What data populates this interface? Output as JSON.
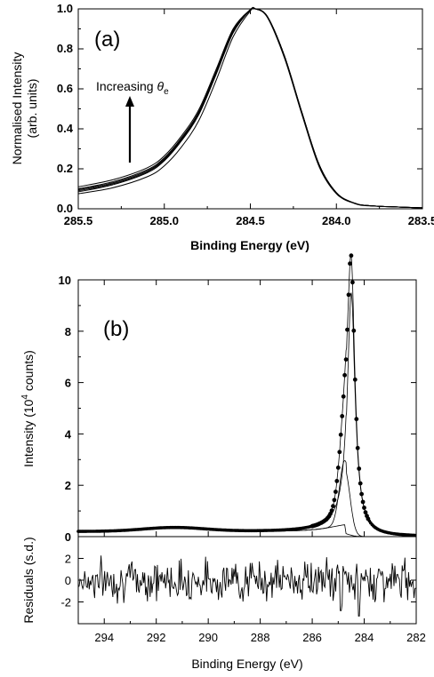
{
  "chart_data": [
    {
      "panel_label": "(a)",
      "type": "line",
      "xlabel": "Binding Energy (eV)",
      "ylabel_line1": "Normalised Intensity",
      "ylabel_line2": "(arb. units)",
      "xlim": [
        285.5,
        283.5
      ],
      "ylim": [
        0.0,
        1.0
      ],
      "x_reversed": true,
      "xticks": [
        "285.5",
        "285.0",
        "284.5",
        "284.0",
        "283.5"
      ],
      "yticks": [
        "0.0",
        "0.2",
        "0.4",
        "0.6",
        "0.8",
        "1.0"
      ],
      "annotation": "Increasing",
      "annotation_symbol": "θ",
      "annotation_subscript": "e",
      "annotation_arrow": "up",
      "peak_center": 284.47,
      "series": [
        {
          "x": [
            285.5,
            285.3,
            285.1,
            285.0,
            284.9,
            284.8,
            284.7,
            284.6,
            284.5,
            284.47,
            284.4,
            284.3,
            284.2,
            284.1,
            284.0,
            283.9,
            283.8,
            283.5
          ],
          "values": [
            0.085,
            0.12,
            0.18,
            0.24,
            0.34,
            0.47,
            0.67,
            0.88,
            0.995,
            1.0,
            0.96,
            0.76,
            0.48,
            0.22,
            0.08,
            0.03,
            0.015,
            0.005
          ]
        },
        {
          "x": [
            285.5,
            285.3,
            285.1,
            285.0,
            284.9,
            284.8,
            284.7,
            284.6,
            284.5,
            284.47,
            284.4,
            284.3,
            284.2,
            284.1,
            284.0,
            283.9,
            283.8,
            283.5
          ],
          "values": [
            0.09,
            0.125,
            0.185,
            0.245,
            0.345,
            0.475,
            0.675,
            0.885,
            0.995,
            1.0,
            0.96,
            0.76,
            0.48,
            0.22,
            0.08,
            0.03,
            0.015,
            0.005
          ]
        },
        {
          "x": [
            285.5,
            285.3,
            285.1,
            285.0,
            284.9,
            284.8,
            284.7,
            284.6,
            284.5,
            284.47,
            284.4,
            284.3,
            284.2,
            284.1,
            284.0,
            283.9,
            283.8,
            283.5
          ],
          "values": [
            0.095,
            0.13,
            0.19,
            0.25,
            0.35,
            0.48,
            0.68,
            0.89,
            0.996,
            1.0,
            0.96,
            0.76,
            0.48,
            0.22,
            0.08,
            0.03,
            0.015,
            0.005
          ]
        },
        {
          "x": [
            285.5,
            285.3,
            285.1,
            285.0,
            284.9,
            284.8,
            284.7,
            284.6,
            284.5,
            284.47,
            284.4,
            284.3,
            284.2,
            284.1,
            284.0,
            283.9,
            283.8,
            283.5
          ],
          "values": [
            0.1,
            0.135,
            0.195,
            0.255,
            0.355,
            0.485,
            0.685,
            0.893,
            0.996,
            1.0,
            0.96,
            0.76,
            0.48,
            0.22,
            0.08,
            0.03,
            0.015,
            0.005
          ]
        },
        {
          "x": [
            285.5,
            285.3,
            285.1,
            285.0,
            284.9,
            284.8,
            284.7,
            284.6,
            284.5,
            284.47,
            284.4,
            284.3,
            284.2,
            284.1,
            284.0,
            283.9,
            283.8,
            283.5
          ],
          "values": [
            0.11,
            0.145,
            0.205,
            0.265,
            0.365,
            0.495,
            0.695,
            0.9,
            0.997,
            1.0,
            0.96,
            0.76,
            0.48,
            0.22,
            0.08,
            0.03,
            0.015,
            0.005
          ]
        },
        {
          "x": [
            285.5,
            285.3,
            285.1,
            285.0,
            284.9,
            284.8,
            284.7,
            284.6,
            284.5,
            284.47,
            284.4,
            284.3,
            284.2,
            284.1,
            284.0,
            283.9,
            283.8,
            283.5
          ],
          "values": [
            0.075,
            0.105,
            0.16,
            0.215,
            0.31,
            0.44,
            0.64,
            0.86,
            0.99,
            1.0,
            0.955,
            0.75,
            0.47,
            0.21,
            0.075,
            0.028,
            0.014,
            0.005
          ]
        }
      ]
    },
    {
      "panel_label": "(b)",
      "type": "scatter",
      "xlabel": "Binding Energy (eV)",
      "ylabel": "Intensity (10",
      "ylabel_sup": "4",
      "ylabel_tail": " counts)",
      "xlim": [
        295,
        282
      ],
      "ylim": [
        0,
        10
      ],
      "x_reversed": true,
      "xticks": [
        "294",
        "292",
        "290",
        "288",
        "286",
        "284",
        "282"
      ],
      "yticks": [
        "0",
        "2",
        "4",
        "6",
        "8",
        "10"
      ],
      "fit": {
        "main_peak": {
          "center": 284.5,
          "height": 9.8,
          "width": 0.18
        },
        "shoulder_peak": {
          "center": 284.75,
          "height": 2.5,
          "width": 0.2
        },
        "baseline": {
          "start": 0.2,
          "hump_center": 291.3,
          "hump_height": 0.15
        }
      },
      "residuals": {
        "ylabel": "Residuals (s.d.)",
        "ylim": [
          -4,
          4
        ],
        "yticks": [
          "2",
          "0",
          "-2"
        ],
        "range_sd": [
          -2.5,
          2.5
        ]
      }
    }
  ]
}
